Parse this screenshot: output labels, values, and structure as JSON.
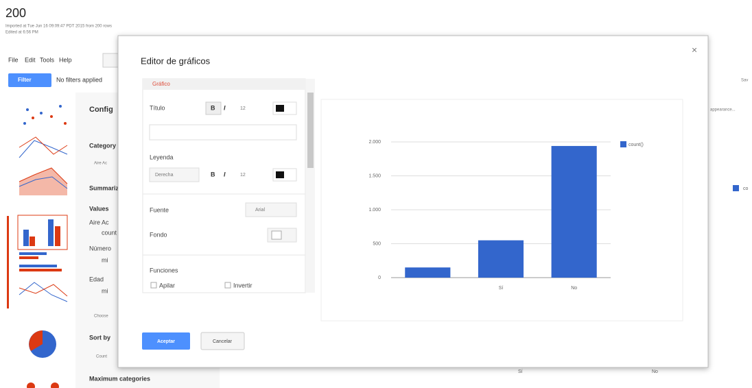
{
  "header": {
    "title": "200",
    "imported": "Imported at Tue Jun 16 09:09:47 PDT 2015 from 200 rows",
    "edited": "Edited at 6:56 PM"
  },
  "menu": [
    "File",
    "Edit",
    "Tools",
    "Help"
  ],
  "filter": {
    "button": "Filter",
    "status": "No filters applied"
  },
  "background_right": {
    "save": "Sav",
    "appearance": "appearance...",
    "legend": "co",
    "categories": [
      "Sí",
      "No"
    ]
  },
  "config_panel": {
    "heading": "Config",
    "category_label": "Category",
    "category_value": "Aire Ac",
    "summarize": "Summarize",
    "values_label": "Values",
    "values_group": "Aire Ac",
    "count": "count",
    "numero": "Número",
    "numero_value": "mi",
    "edad": "Edad",
    "edad_value": "mi",
    "choose": "Choose",
    "sort_by": "Sort by",
    "sort_value": "Count",
    "maximum": "Maximum categories"
  },
  "dialog": {
    "title": "Editor de gráficos",
    "close": "×",
    "section": "Gráfico",
    "title_label": "Título",
    "bold": "B",
    "italic": "I",
    "size": "12",
    "legend_label": "Leyenda",
    "legend_position": "Derecha",
    "font_label": "Fuente",
    "font_value": "Arial",
    "background_label": "Fondo",
    "functions_label": "Funciones",
    "stack": "Apilar",
    "reverse": "Invertir",
    "accept": "Aceptar",
    "cancel": "Cancelar"
  },
  "chart_data": {
    "type": "bar",
    "categories": [
      null,
      "Sí",
      "No"
    ],
    "series": [
      {
        "name": "count()",
        "color": "#3366cc",
        "values": [
          150,
          550,
          1940
        ]
      }
    ],
    "ylim": [
      0,
      2000
    ],
    "yticks": [
      0,
      500,
      {
        "value": 1000,
        "label": "1.000"
      },
      {
        "value": 1500,
        "label": "1.500"
      },
      {
        "value": 2000,
        "label": "2.000"
      }
    ],
    "grid": true,
    "legend": "right"
  }
}
